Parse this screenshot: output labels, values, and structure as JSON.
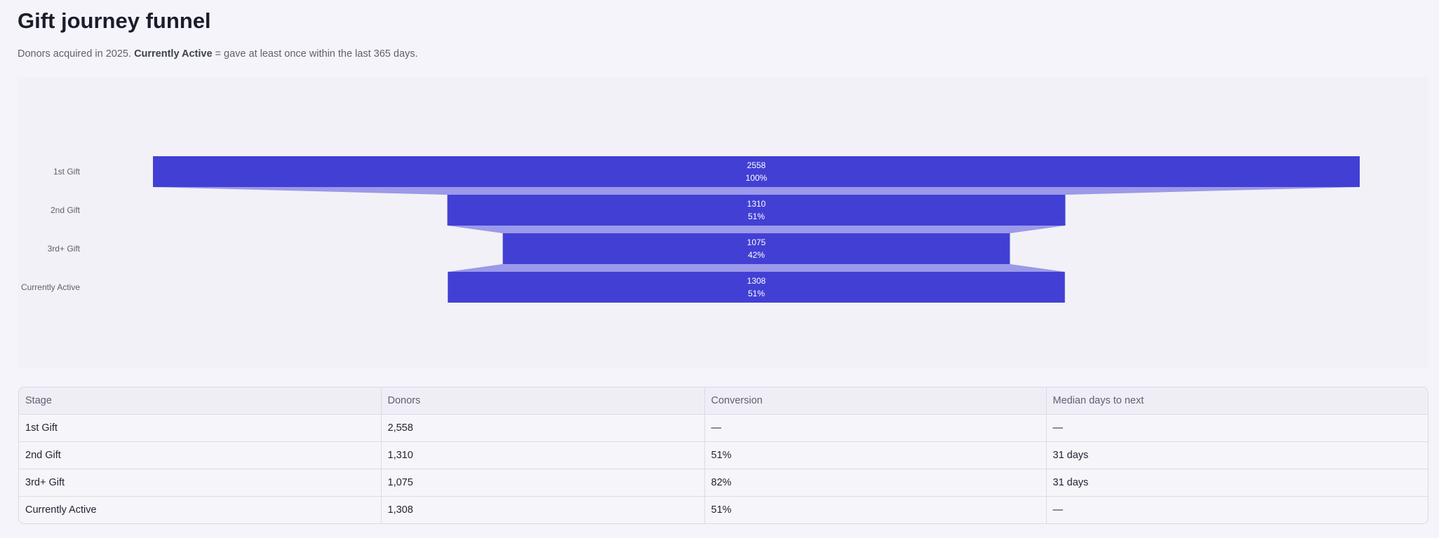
{
  "page": {
    "title": "Gift journey funnel",
    "subtitle_prefix": "Donors acquired in 2025. ",
    "subtitle_bold": "Currently Active",
    "subtitle_suffix": " = gave at least once within the last 365 days."
  },
  "chart_data": {
    "type": "funnel",
    "categories": [
      "1st Gift",
      "2nd Gift",
      "3rd+ Gift",
      "Currently Active"
    ],
    "values": [
      2558,
      1310,
      1075,
      1308
    ],
    "percent_labels": [
      "100%",
      "51%",
      "42%",
      "51%"
    ],
    "colors": {
      "bar": "#4240d4",
      "connector": "#9b99e9",
      "bar_text": "#ffffff",
      "axis_text": "#5d6170"
    }
  },
  "table": {
    "headers": [
      "Stage",
      "Donors",
      "Conversion",
      "Median days to next"
    ],
    "rows": [
      [
        "1st Gift",
        "2,558",
        "—",
        "—"
      ],
      [
        "2nd Gift",
        "1,310",
        "51%",
        "31 days"
      ],
      [
        "3rd+ Gift",
        "1,075",
        "82%",
        "31 days"
      ],
      [
        "Currently Active",
        "1,308",
        "51%",
        "—"
      ]
    ]
  }
}
